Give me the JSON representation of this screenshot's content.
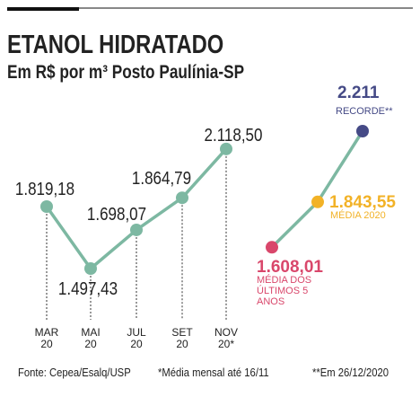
{
  "chart_data": {
    "type": "line",
    "title": "ETANOL HIDRATADO",
    "subtitle": "Em R$ por m³ Posto Paulínia-SP",
    "categories": [
      "MAR 20",
      "MAI 20",
      "JUL 20",
      "SET 20",
      "NOV 20*"
    ],
    "values": [
      1819.18,
      1497.43,
      1698.07,
      1864.79,
      2118.5
    ],
    "value_labels": [
      "1.819,18",
      "1.497,43",
      "1.698,07",
      "1.864,79",
      "2.118,50"
    ],
    "color": "#7db8a2",
    "highlights": [
      {
        "value": 1608.01,
        "value_label": "1.608,01",
        "label": "MÉDIA DOS ÚLTIMOS 5 ANOS",
        "color": "#d9476b"
      },
      {
        "value": 1843.55,
        "value_label": "1.843,55",
        "label": "MÉDIA 2020",
        "color": "#f2b227"
      },
      {
        "value": 2211,
        "value_label": "2.211",
        "label": "RECORDE**",
        "color": "#454a86"
      }
    ],
    "notes": [
      "Fonte: Cepea/Esalq/USP",
      "*Média mensal até 16/11",
      "**Em 26/12/2020"
    ]
  }
}
